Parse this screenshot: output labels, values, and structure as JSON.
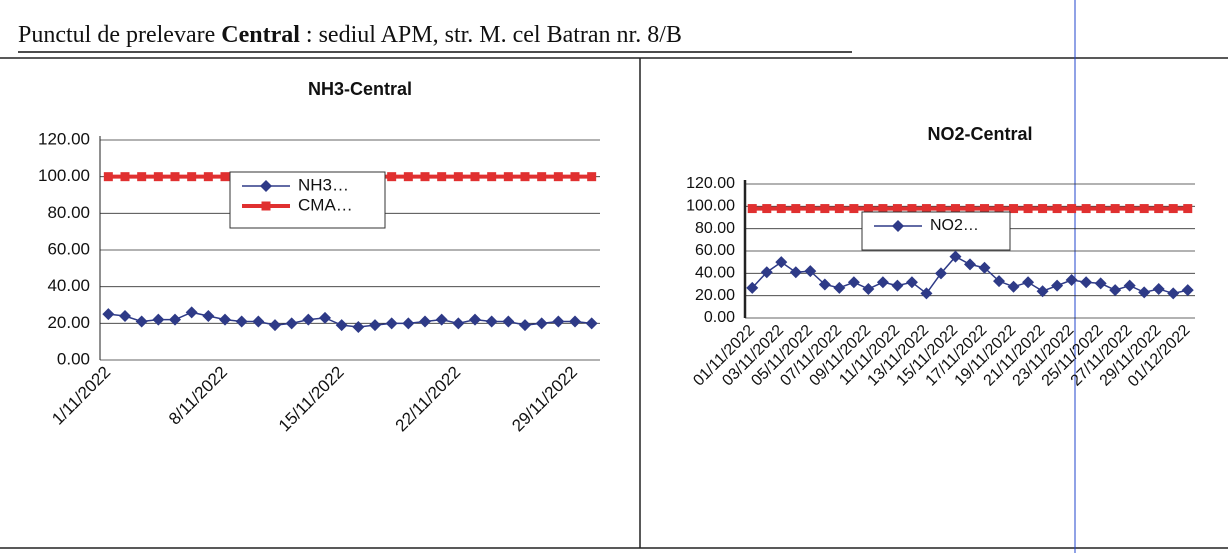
{
  "header": {
    "parts": [
      "Punctul de prelevare ",
      "Central",
      " : sediul APM, str. M. cel Batran nr. 8/B"
    ]
  },
  "chart_data": [
    {
      "type": "line",
      "title": "NH3-Central",
      "categories": [
        "1/11/2022",
        null,
        null,
        null,
        null,
        null,
        null,
        "8/11/2022",
        null,
        null,
        null,
        null,
        null,
        null,
        "15/11/2022",
        null,
        null,
        null,
        null,
        null,
        null,
        "22/11/2022",
        null,
        null,
        null,
        null,
        null,
        null,
        "29/11/2022",
        null
      ],
      "series": [
        {
          "name": "NH3…",
          "color": "#2e3a87",
          "marker": "diamond",
          "values": [
            25,
            24,
            21,
            22,
            22,
            26,
            24,
            22,
            21,
            21,
            19,
            20,
            22,
            23,
            19,
            18,
            19,
            20,
            20,
            21,
            22,
            20,
            22,
            21,
            21,
            19,
            20,
            21,
            21,
            20
          ]
        },
        {
          "name": "CMA…",
          "color": "#e03030",
          "marker": "square",
          "values": [
            100,
            100,
            100,
            100,
            100,
            100,
            100,
            100,
            100,
            100,
            100,
            100,
            100,
            100,
            100,
            100,
            100,
            100,
            100,
            100,
            100,
            100,
            100,
            100,
            100,
            100,
            100,
            100,
            100,
            100
          ]
        }
      ],
      "ylim": [
        0,
        120
      ],
      "yticks": [
        {
          "value": 0,
          "label": "0.00"
        },
        {
          "value": 20,
          "label": "20.00"
        },
        {
          "value": 40,
          "label": "40.00"
        },
        {
          "value": 60,
          "label": "60.00"
        },
        {
          "value": 80,
          "label": "80.00"
        },
        {
          "value": 100,
          "label": "100.00"
        },
        {
          "value": 120,
          "label": "120.00"
        }
      ],
      "grid": true
    },
    {
      "type": "line",
      "title": "NO2-Central",
      "categories": [
        "01/11/2022",
        null,
        "03/11/2022",
        null,
        "05/11/2022",
        null,
        "07/11/2022",
        null,
        "09/11/2022",
        null,
        "11/11/2022",
        null,
        "13/11/2022",
        null,
        "15/11/2022",
        null,
        "17/11/2022",
        null,
        "19/11/2022",
        null,
        "21/11/2022",
        null,
        "23/11/2022",
        null,
        "25/11/2022",
        null,
        "27/11/2022",
        null,
        "29/11/2022",
        null,
        "01/12/2022"
      ],
      "series": [
        {
          "name": "NO2…",
          "color": "#2e3a87",
          "marker": "diamond",
          "values": [
            27,
            41,
            50,
            41,
            42,
            30,
            27,
            32,
            26,
            32,
            29,
            32,
            22,
            40,
            55,
            48,
            45,
            33,
            28,
            32,
            24,
            29,
            34,
            32,
            31,
            25,
            29,
            23,
            26,
            22,
            25
          ]
        },
        {
          "color": "#e03030",
          "marker": "square",
          "values": [
            98,
            98,
            98,
            98,
            98,
            98,
            98,
            98,
            98,
            98,
            98,
            98,
            98,
            98,
            98,
            98,
            98,
            98,
            98,
            98,
            98,
            98,
            98,
            98,
            98,
            98,
            98,
            98,
            98,
            98,
            98
          ]
        }
      ],
      "ylim": [
        0,
        120
      ],
      "yticks": [
        {
          "value": 0,
          "label": "0.00"
        },
        {
          "value": 20,
          "label": "20.00"
        },
        {
          "value": 40,
          "label": "40.00"
        },
        {
          "value": 60,
          "label": "60.00"
        },
        {
          "value": 80,
          "label": "80.00"
        },
        {
          "value": 100,
          "label": "100.00"
        },
        {
          "value": 120,
          "label": "120.00"
        }
      ],
      "grid": true
    }
  ]
}
